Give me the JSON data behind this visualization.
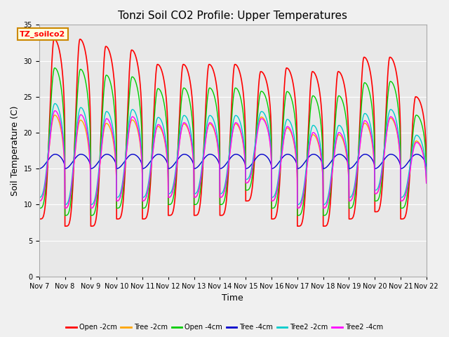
{
  "title": "Tonzi Soil CO2 Profile: Upper Temperatures",
  "xlabel": "Time",
  "ylabel": "Soil Temperature (C)",
  "ylim": [
    0,
    35
  ],
  "yticks": [
    0,
    5,
    10,
    15,
    20,
    25,
    30,
    35
  ],
  "series": [
    {
      "label": "Open -2cm",
      "color": "#FF0000"
    },
    {
      "label": "Tree -2cm",
      "color": "#FFA500"
    },
    {
      "label": "Open -4cm",
      "color": "#00CC00"
    },
    {
      "label": "Tree -4cm",
      "color": "#0000CC"
    },
    {
      "label": "Tree2 -2cm",
      "color": "#00CCCC"
    },
    {
      "label": "Tree2 -4cm",
      "color": "#FF00FF"
    }
  ],
  "x_tick_labels": [
    "Nov 7",
    "Nov 8",
    "Nov 9",
    "Nov 10",
    "Nov 11",
    "Nov 12",
    "Nov 13",
    "Nov 14",
    "Nov 15",
    "Nov 16",
    "Nov 17",
    "Nov 18",
    "Nov 19",
    "Nov 20",
    "Nov 21",
    "Nov 22"
  ],
  "legend_label": "TZ_soilco2",
  "fig_facecolor": "#F0F0F0",
  "plot_bg": "#E8E8E8",
  "title_fontsize": 11,
  "axis_fontsize": 9,
  "tick_fontsize": 7,
  "day_peaks_open2": [
    33,
    33,
    32,
    31.5,
    29.5,
    29.5,
    29.5,
    29.5,
    28.5,
    29,
    28.5,
    28.5,
    30.5,
    30.5,
    25
  ],
  "day_mins_open2": [
    8,
    7,
    7,
    8,
    8,
    8.5,
    8.5,
    8.5,
    10.5,
    8,
    7,
    7,
    8,
    9,
    8
  ]
}
